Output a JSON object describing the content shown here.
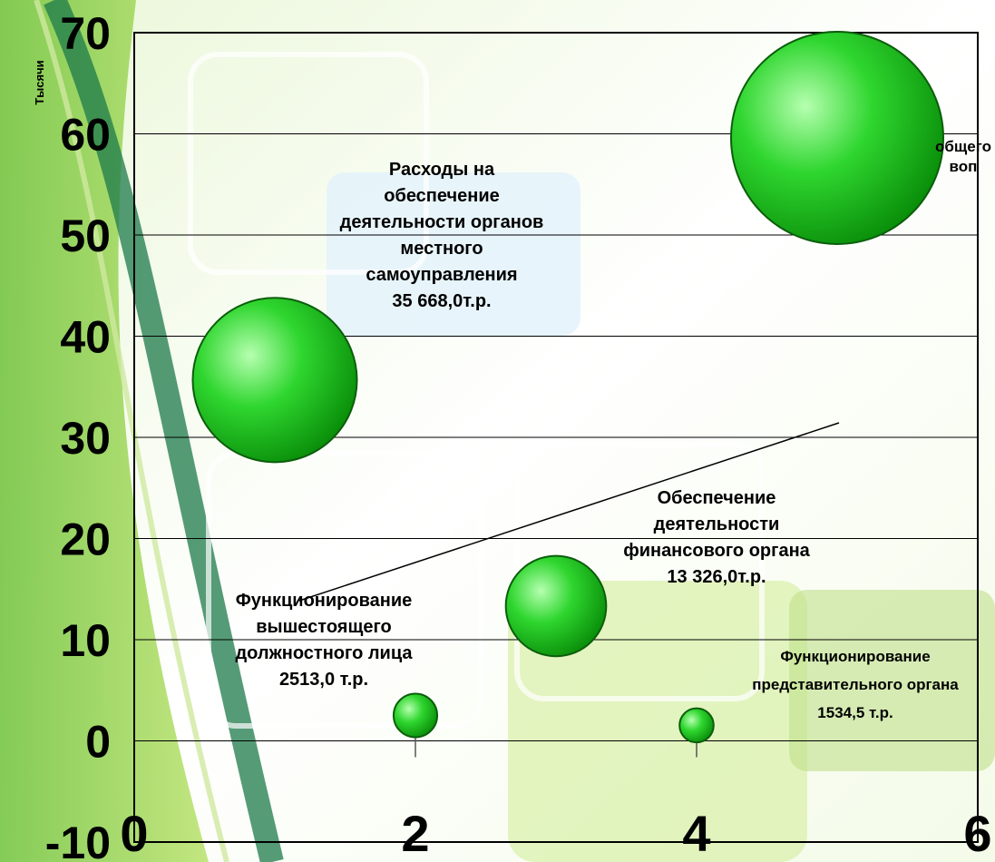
{
  "chart_data": {
    "type": "bubble",
    "ylabel": "Тысячи",
    "xlim": [
      0,
      6
    ],
    "ylim": [
      -10,
      70
    ],
    "x_ticks": [
      "0",
      "2",
      "4",
      "6"
    ],
    "y_ticks": [
      "-10",
      "0",
      "10",
      "20",
      "30",
      "40",
      "50",
      "60",
      "70"
    ],
    "grid": "horizontal",
    "points": [
      {
        "x": 1,
        "y": 35.668,
        "size": 35668,
        "label": [
          "Расходы на",
          "обеспечение",
          "деятельности органов",
          "местного",
          "самоуправления",
          "35 668,0т.р."
        ]
      },
      {
        "x": 2,
        "y": 2.513,
        "size": 2513,
        "label": [
          "Функционирование",
          "вышестоящего",
          "должностного  лица",
          "2513,0 т.р."
        ]
      },
      {
        "x": 3,
        "y": 13.326,
        "size": 13326,
        "label": [
          "Обеспечение",
          "деятельности",
          "финансового органа",
          "13 326,0т.р."
        ]
      },
      {
        "x": 4,
        "y": 1.5345,
        "size": 1534.5,
        "label": [
          "Функционирование",
          "представительного органа",
          "1534,5  т.р."
        ]
      },
      {
        "x": 5,
        "y": 59.6,
        "size": 59600,
        "label": [
          "общего",
          "воп"
        ]
      }
    ],
    "colors": {
      "bubble": "#2fd62f",
      "bubble_dark": "#0a8f0a",
      "bubble_light": "#b6ffb0"
    }
  }
}
